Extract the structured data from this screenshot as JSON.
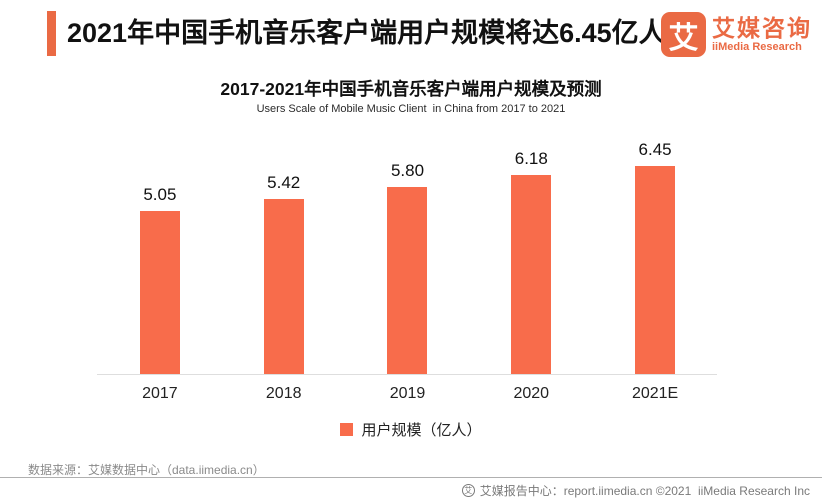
{
  "header": {
    "title": "2021年中国手机音乐客户端用户规模将达6.45亿人",
    "logo": {
      "glyph": "艾",
      "name_cn": "艾媒咨询",
      "name_en": "iiMedia Research"
    }
  },
  "chart_data": {
    "type": "bar",
    "title": "2017-2021年中国手机音乐客户端用户规模及预测",
    "subtitle": "Users Scale of Mobile Music Client  in China from 2017 to 2021",
    "categories": [
      "2017",
      "2018",
      "2019",
      "2020",
      "2021E"
    ],
    "values": [
      5.05,
      5.42,
      5.8,
      6.18,
      6.45
    ],
    "value_labels": [
      "5.05",
      "5.42",
      "5.80",
      "6.18",
      "6.45"
    ],
    "legend": [
      "用户规模（亿人）"
    ],
    "xlabel": "",
    "ylabel": "用户规模（亿人）",
    "ylim": [
      0,
      7.2
    ],
    "grid": false,
    "legend_position": "bottom",
    "bar_color": "#F86C4B"
  },
  "footer": {
    "source": "数据来源：艾媒数据中心（data.iimedia.cn）",
    "report_center": "艾媒报告中心：report.iimedia.cn ©2021  iiMedia Research Inc"
  },
  "colors": {
    "accent": "#EA6A44",
    "bar": "#F86C4B",
    "axis_line": "#dedede"
  }
}
